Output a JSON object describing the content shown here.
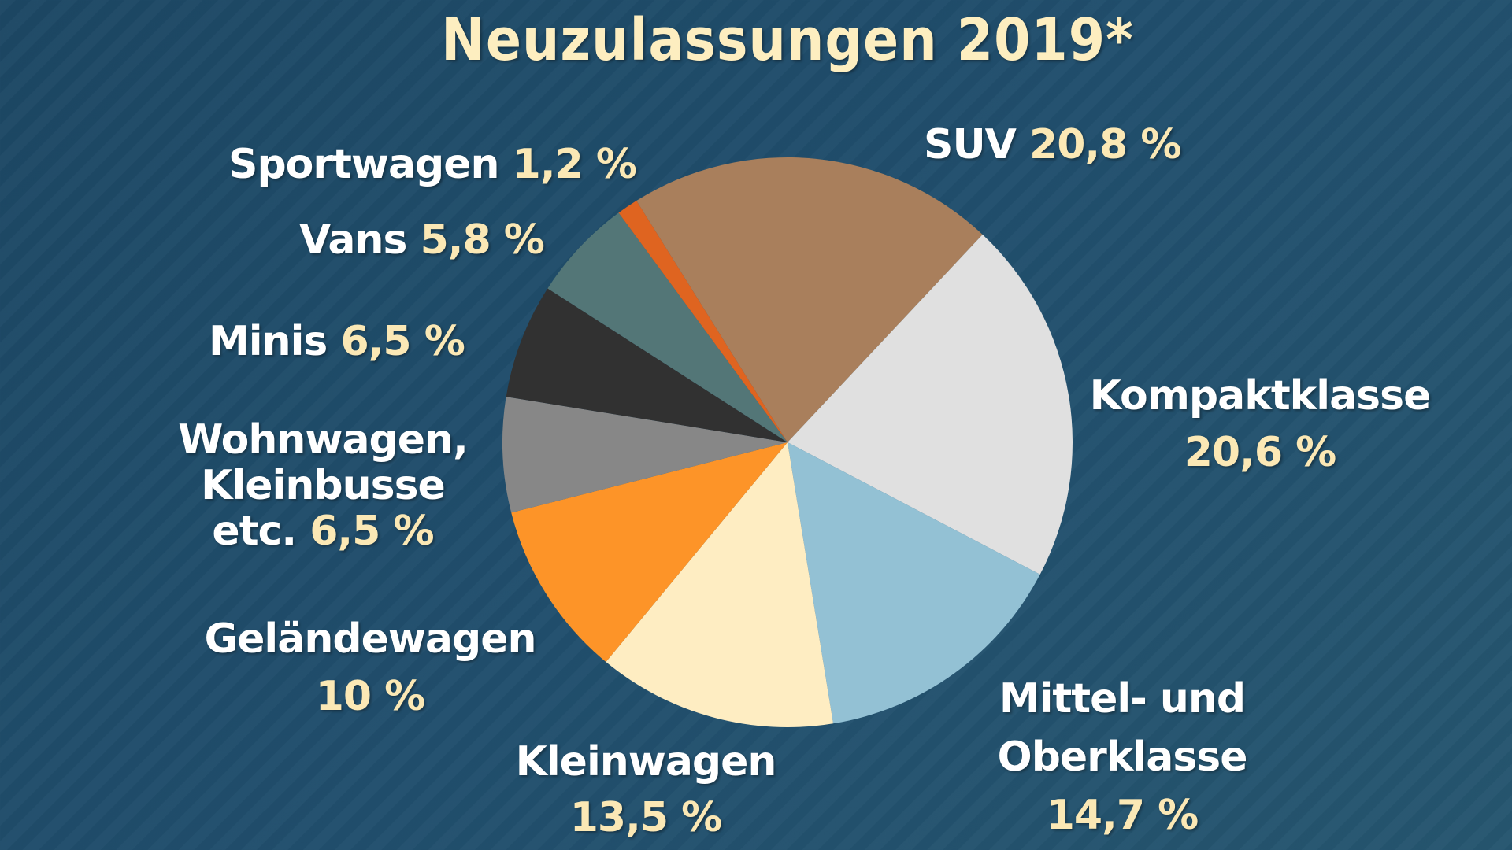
{
  "chart_data": {
    "type": "pie",
    "title": "Neuzulassungen 2019*",
    "unit": "%",
    "start_angle_deg": -32,
    "direction": "clockwise",
    "slices": [
      {
        "key": "suv",
        "label": "SUV",
        "value": 20.8,
        "value_label": "20,8 %",
        "color": "#a97f5c"
      },
      {
        "key": "kompakt",
        "label": "Kompaktklasse",
        "value": 20.6,
        "value_label": "20,6 %",
        "color": "#e0e0e0"
      },
      {
        "key": "mittel",
        "label": "Mittel- und Oberklasse",
        "label_lines": [
          "Mittel- und",
          "Oberklasse"
        ],
        "value": 14.7,
        "value_label": "14,7 %",
        "color": "#93c1d4"
      },
      {
        "key": "klein",
        "label": "Kleinwagen",
        "value": 13.5,
        "value_label": "13,5 %",
        "color": "#feedc2"
      },
      {
        "key": "gelaende",
        "label": "Geländewagen",
        "value": 10,
        "value_label": "10 %",
        "color": "#fd9428"
      },
      {
        "key": "wohn",
        "label": "Wohnwagen, Kleinbusse etc.",
        "label_lines": [
          "Wohnwagen,",
          "Kleinbusse",
          "etc."
        ],
        "value": 6.5,
        "value_label": "6,5 %",
        "color": "#878787"
      },
      {
        "key": "minis",
        "label": "Minis",
        "value": 6.5,
        "value_label": "6,5 %",
        "color": "#313131"
      },
      {
        "key": "vans",
        "label": "Vans",
        "value": 5.8,
        "value_label": "5,8 %",
        "color": "#537677"
      },
      {
        "key": "sport",
        "label": "Sportwagen",
        "value": 1.2,
        "value_label": "1,2 %",
        "color": "#df6420"
      }
    ]
  },
  "colors": {
    "background": "#1f4a68",
    "title": "#fdeec0",
    "label_text": "#ffffff",
    "value_text": "#fbe8b5"
  }
}
